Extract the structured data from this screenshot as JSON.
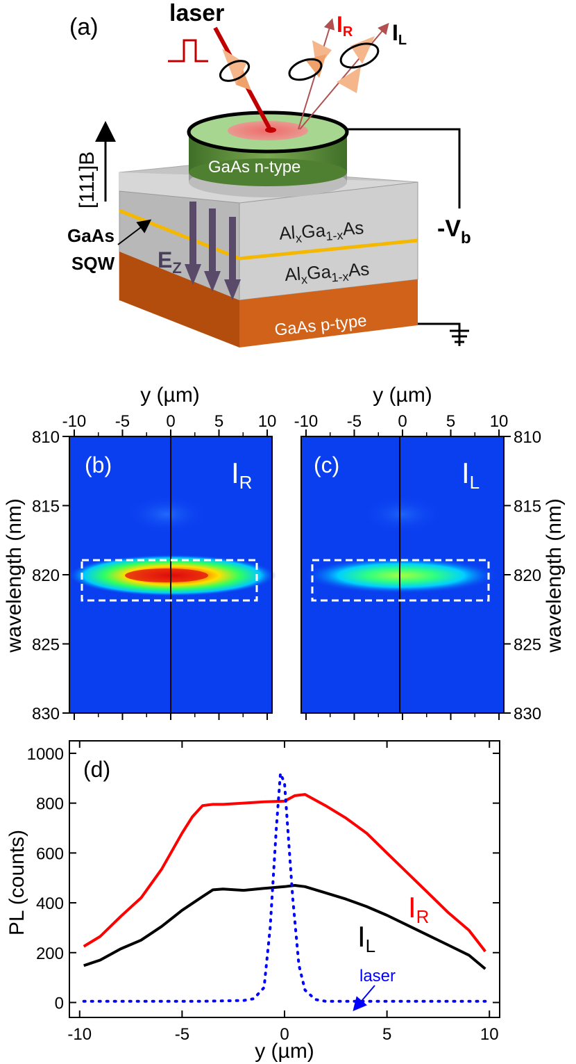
{
  "panel_a": {
    "label": "(a)",
    "laser": "laser",
    "ir_main": "I",
    "ir_sub": "R",
    "il_main": "I",
    "il_sub": "L",
    "axis_label": "[111]B",
    "gaas_sqw_1": "GaAs",
    "gaas_sqw_2": "SQW",
    "ez_main": "E",
    "ez_sub": "Z",
    "n_layer": "GaAs n-type",
    "algaas_1": "Al",
    "algaas_x": "x",
    "algaas_2": "Ga",
    "algaas_1x": "1-x",
    "algaas_3": "As",
    "p_layer": "GaAs p-type",
    "vb_main": "-V",
    "vb_sub": "b",
    "colors": {
      "n_layer": "#5e8e3a",
      "p_layer": "#c85a12",
      "algaas": "#c8c8c8",
      "qw_line": "#f5b800",
      "laser": "#c00000",
      "emission": "#b05050",
      "arrow_fill": "#5a4a6a",
      "polarizer": "#f4b68a"
    }
  },
  "panel_b": {
    "label": "(b)",
    "tag_main": "I",
    "tag_sub": "R"
  },
  "panel_c": {
    "label": "(c)",
    "tag_main": "I",
    "tag_sub": "L"
  },
  "maps_axes": {
    "top_label": "y (µm)",
    "y_label": "wavelength (nm)",
    "x_ticks": [
      "-10",
      "-5",
      "0",
      "5",
      "10"
    ],
    "y_ticks": [
      "810",
      "815",
      "820",
      "825",
      "830"
    ],
    "x_range": [
      -10.5,
      10.5
    ],
    "y_range": [
      810,
      830
    ],
    "box_range_nm": [
      819,
      822
    ]
  },
  "panel_d": {
    "label": "(d)",
    "ir_main": "I",
    "ir_sub": "R",
    "il_main": "I",
    "il_sub": "L",
    "laser_label": "laser"
  },
  "chart_data": {
    "type": "line",
    "title": "",
    "xlabel": "y (µm)",
    "ylabel": "PL (counts)",
    "xlim": [
      -10.5,
      10.5
    ],
    "ylim": [
      -60,
      1050
    ],
    "x_ticks": [
      "-10",
      "-5",
      "0",
      "5",
      "10"
    ],
    "y_ticks": [
      "0",
      "200",
      "400",
      "600",
      "800",
      "1000"
    ],
    "series": [
      {
        "name": "IR",
        "color": "#ff0000",
        "style": "solid",
        "x": [
          -9.8,
          -9,
          -8,
          -7,
          -6,
          -5,
          -4.5,
          -4,
          -3.5,
          -3,
          -2,
          -1,
          0,
          0.5,
          1,
          2,
          3,
          4,
          5,
          6,
          7,
          8,
          9,
          9.8
        ],
        "y": [
          225,
          265,
          345,
          420,
          535,
          680,
          745,
          790,
          795,
          795,
          800,
          805,
          808,
          830,
          835,
          790,
          740,
          680,
          600,
          520,
          440,
          360,
          290,
          205
        ]
      },
      {
        "name": "IL",
        "color": "#000000",
        "style": "solid",
        "x": [
          -9.8,
          -9,
          -8,
          -7,
          -6,
          -5,
          -4,
          -3.5,
          -3,
          -2,
          -1,
          0,
          0.5,
          1,
          2,
          3,
          4,
          5,
          6,
          7,
          8,
          9,
          9.8
        ],
        "y": [
          148,
          170,
          215,
          250,
          305,
          370,
          425,
          452,
          455,
          450,
          458,
          465,
          470,
          465,
          440,
          415,
          385,
          350,
          310,
          270,
          230,
          190,
          135
        ]
      },
      {
        "name": "laser",
        "color": "#0000ff",
        "style": "dotted",
        "x": [
          -9.8,
          -8,
          -6,
          -4,
          -2,
          -1.5,
          -1,
          -0.7,
          -0.4,
          -0.2,
          0,
          0.2,
          0.4,
          0.7,
          1,
          1.5,
          2,
          3,
          4,
          6,
          8,
          9.8
        ],
        "y": [
          5,
          5,
          5,
          5,
          8,
          15,
          60,
          300,
          700,
          920,
          880,
          650,
          420,
          150,
          50,
          12,
          5,
          5,
          5,
          5,
          5,
          5
        ]
      }
    ]
  }
}
